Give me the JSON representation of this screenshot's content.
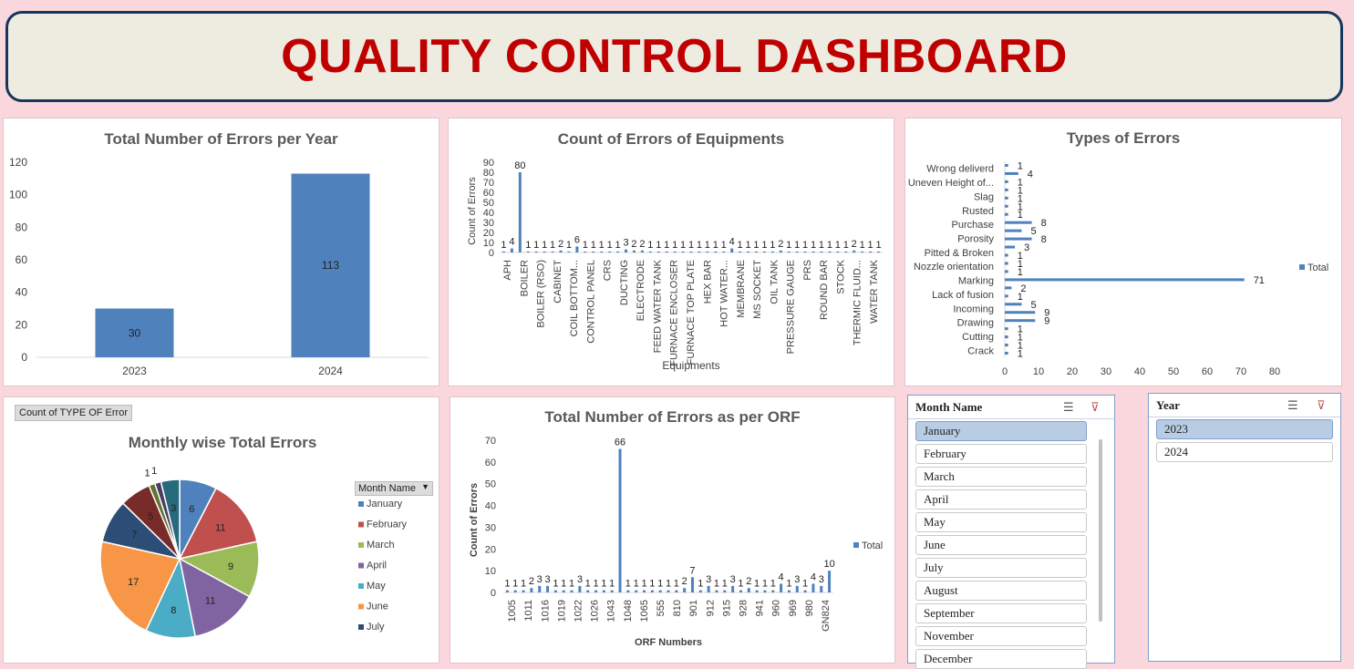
{
  "header": {
    "title": "QUALITY CONTROL DASHBOARD"
  },
  "colors": {
    "bar": "#4f81bd",
    "title": "#c00000",
    "border": "#17365d"
  },
  "chart_year": {
    "title": "Total Number of Errors per Year",
    "chart_data": {
      "type": "bar",
      "categories": [
        "2023",
        "2024"
      ],
      "values": [
        30,
        113
      ],
      "ylim": [
        0,
        120
      ],
      "yticks": [
        0,
        20,
        40,
        60,
        80,
        100,
        120
      ]
    }
  },
  "chart_equip": {
    "title": "Count of Errors of Equipments",
    "xlabel": "Equipments",
    "ylabel": "Count of Errors",
    "chart_data": {
      "type": "bar",
      "values": [
        1,
        4,
        80,
        1,
        1,
        1,
        1,
        2,
        1,
        6,
        1,
        1,
        1,
        1,
        1,
        3,
        2,
        2,
        1,
        1,
        1,
        1,
        1,
        1,
        1,
        1,
        1,
        1,
        4,
        1,
        1,
        1,
        1,
        1,
        2,
        1,
        1,
        1,
        1,
        1,
        1,
        1,
        1,
        2,
        1,
        1,
        1
      ],
      "categories_shown": [
        "APH",
        "BOILER",
        "BOILER (RSO)",
        "CABINET",
        "COIL BOTTOM...",
        "CONTROL PANEL",
        "CRS",
        "DUCTING",
        "ELECTRODE",
        "FEED WATER TANK",
        "FURNACE ENCLOSER",
        "FURNACE TOP PLATE",
        "HEX BAR",
        "HOT WATER...",
        "MEMBRANE",
        "MS SOCKET",
        "OIL TANK",
        "PRESSURE GAUGE",
        "PRS",
        "ROUND BAR",
        "STOCK",
        "THERMIC FLUID...",
        "WATER TANK"
      ],
      "ylim": [
        0,
        90
      ],
      "yticks": [
        0,
        10,
        20,
        30,
        40,
        50,
        60,
        70,
        80,
        90
      ]
    }
  },
  "chart_types": {
    "title": "Types of Errors",
    "legend": "Total",
    "chart_data": {
      "type": "bar",
      "labels_shown": [
        "Wrong deliverd",
        "Uneven Height of...",
        "Slag",
        "Rusted",
        "Purchase",
        "Porosity",
        "Pitted &  Broken",
        "Nozzle orientation",
        "Marking",
        "Lack of fusion",
        "Incoming",
        "Drawing",
        "Cutting",
        "Crack"
      ],
      "values": [
        1,
        4,
        1,
        1,
        1,
        1,
        1,
        8,
        5,
        8,
        3,
        1,
        1,
        1,
        71,
        2,
        1,
        5,
        9,
        9,
        1,
        1,
        1,
        1
      ],
      "xlim": [
        0,
        80
      ],
      "xticks": [
        0,
        10,
        20,
        30,
        40,
        50,
        60,
        70,
        80
      ]
    }
  },
  "chart_month": {
    "title": "Monthly wise Total Errors",
    "pivot_tag": "Count of TYPE OF  Error",
    "legend_header": "Month Name",
    "chart_data": {
      "type": "pie",
      "slices": [
        {
          "label": "January",
          "value": 6,
          "color": "#4f81bd"
        },
        {
          "label": "February",
          "value": 11,
          "color": "#c0504d"
        },
        {
          "label": "March",
          "value": 9,
          "color": "#9bbb59"
        },
        {
          "label": "April",
          "value": 11,
          "color": "#8064a2"
        },
        {
          "label": "May",
          "value": 8,
          "color": "#4bacc6"
        },
        {
          "label": "June",
          "value": 17,
          "color": "#f79646"
        },
        {
          "label": "July",
          "value": 7,
          "color": "#2c4d75"
        },
        {
          "label": "August",
          "value": 5,
          "color": "#772c2a"
        },
        {
          "label": "September",
          "value": 1,
          "color": "#5f7530"
        },
        {
          "label": "October",
          "value": 1,
          "color": "#4d3b62"
        },
        {
          "label": "November",
          "value": 3,
          "color": "#276a7c"
        }
      ],
      "legend_shown": [
        "January",
        "February",
        "March",
        "April",
        "May",
        "June",
        "July"
      ]
    }
  },
  "chart_orf": {
    "title": "Total Number of Errors as per ORF",
    "xlabel": "ORF Numbers",
    "ylabel": "Count of Errors",
    "legend": "Total",
    "chart_data": {
      "type": "bar",
      "values": [
        1,
        1,
        1,
        2,
        3,
        3,
        1,
        1,
        1,
        3,
        1,
        1,
        1,
        1,
        66,
        1,
        1,
        1,
        1,
        1,
        1,
        1,
        2,
        7,
        1,
        3,
        1,
        1,
        3,
        1,
        2,
        1,
        1,
        1,
        4,
        1,
        3,
        1,
        4,
        3,
        10
      ],
      "ticks_shown": [
        "1005",
        "1011",
        "1016",
        "1019",
        "1022",
        "1026",
        "1043",
        "1048",
        "1065",
        "555",
        "810",
        "901",
        "912",
        "915",
        "928",
        "941",
        "960",
        "969",
        "980",
        "GN824"
      ],
      "ylim": [
        0,
        70
      ],
      "yticks": [
        0,
        10,
        20,
        30,
        40,
        50,
        60,
        70
      ]
    }
  },
  "slicer_month": {
    "title": "Month Name",
    "items": [
      "January",
      "February",
      "March",
      "April",
      "May",
      "June",
      "July",
      "August",
      "September",
      "November",
      "December"
    ],
    "selected": "January"
  },
  "slicer_year": {
    "title": "Year",
    "items": [
      "2023",
      "2024"
    ],
    "selected": "2023"
  }
}
